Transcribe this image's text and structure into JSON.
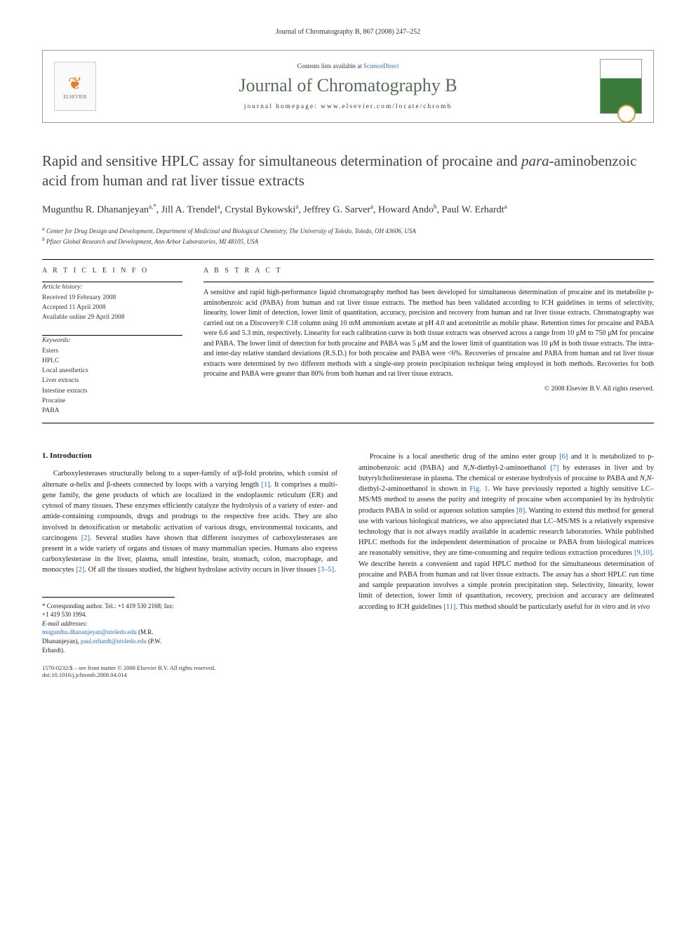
{
  "header": {
    "citation": "Journal of Chromatography B, 867 (2008) 247–252"
  },
  "masthead": {
    "contents_prefix": "Contents lists available at ",
    "contents_link": "ScienceDirect",
    "journal_title": "Journal of Chromatography B",
    "homepage_label": "journal homepage: www.elsevier.com/locate/chromb",
    "publisher": "ELSEVIER"
  },
  "article": {
    "title_pre": "Rapid and sensitive HPLC assay for simultaneous determination of procaine and ",
    "title_ital": "para",
    "title_post": "-aminobenzoic acid from human and rat liver tissue extracts",
    "authors_html": "Mugunthu R. Dhananjeyan<sup>a,*</sup>, Jill A. Trendel<sup>a</sup>, Crystal Bykowski<sup>a</sup>, Jeffrey G. Sarver<sup>a</sup>, Howard Ando<sup>b</sup>, Paul W. Erhardt<sup>a</sup>",
    "affiliations": {
      "a": "Center for Drug Design and Development, Department of Medicinal and Biological Chemistry, The University of Toledo, Toledo, OH 43606, USA",
      "b": "Pfizer Global Research and Development, Ann Arbor Laboratories, MI 48105, USA"
    }
  },
  "info": {
    "heading": "A R T I C L E   I N F O",
    "history_label": "Article history:",
    "received": "Received 19 February 2008",
    "accepted": "Accepted 11 April 2008",
    "online": "Available online 29 April 2008",
    "keywords_label": "Keywords:",
    "keywords": [
      "Esters",
      "HPLC",
      "Local anesthetics",
      "Liver extracts",
      "Intestine extracts",
      "Procaine",
      "PABA"
    ]
  },
  "abstract": {
    "heading": "A B S T R A C T",
    "text": "A sensitive and rapid high-performance liquid chromatography method has been developed for simultaneous determination of procaine and its metabolite p-aminobenzoic acid (PABA) from human and rat liver tissue extracts. The method has been validated according to ICH guidelines in terms of selectivity, linearity, lower limit of detection, lower limit of quantitation, accuracy, precision and recovery from human and rat liver tissue extracts. Chromatography was carried out on a Discovery® C18 column using 10 mM ammonium acetate at pH 4.0 and acetonitrile as mobile phase. Retention times for procaine and PABA were 6.6 and 5.3 min, respectively. Linearity for each calibration curve in both tissue extracts was observed across a range from 10 μM to 750 μM for procaine and PABA. The lower limit of detection for both procaine and PABA was 5 μM and the lower limit of quantitation was 10 μM in both tissue extracts. The intra- and inter-day relative standard deviations (R.S.D.) for both procaine and PABA were <6%. Recoveries of procaine and PABA from human and rat liver tissue extracts were determined by two different methods with a single-step protein precipitation technique being employed in both methods. Recoveries for both procaine and PABA were greater than 80% from both human and rat liver tissue extracts.",
    "copyright": "© 2008 Elsevier B.V. All rights reserved."
  },
  "body": {
    "section1_heading": "1. Introduction",
    "col1_para": "Carboxylesterases structurally belong to a super-family of α/β-fold proteins, which consist of alternate α-helix and β-sheets connected by loops with a varying length [1]. It comprises a multi-gene family, the gene products of which are localized in the endoplasmic reticulum (ER) and cytosol of many tissues. These enzymes efficiently catalyze the hydrolysis of a variety of ester- and amide-containing compounds, drugs and prodrugs to the respective free acids. They are also involved in detoxification or metabolic activation of various drugs, environmental toxicants, and carcinogens [2]. Several studies have shown that different isozymes of carboxylesterases are present in a wide variety of organs and tissues of many mammalian species. Humans also express carboxylesterase in the liver, plasma, small intestine, brain, stomach, colon, macrophage, and monocytes [2]. Of all the tissues studied, the highest hydrolase activity occurs in liver tissues [3–5].",
    "col2_para": "Procaine is a local anesthetic drug of the amino ester group [6] and it is metabolized to p-aminobenzoic acid (PABA) and N,N-diethyl-2-aminoethanol [7] by esterases in liver and by butyrylcholinesterase in plasma. The chemical or esterase hydrolysis of procaine to PABA and N,N-diethyl-2-aminoethanol is shown in Fig. 1. We have previously reported a highly sensitive LC–MS/MS method to assess the purity and integrity of procaine when accompanied by its hydrolytic products PABA in solid or aqueous solution samples [8]. Wanting to extend this method for general use with various biological matrices, we also appreciated that LC–MS/MS is a relatively expensive technology that is not always readily available in academic research laboratories. While published HPLC methods for the independent determination of procaine or PABA from biological matrices are reasonably sensitive, they are time-consuming and require tedious extraction procedures [9,10]. We describe herein a convenient and rapid HPLC method for the simultaneous determination of procaine and PABA from human and rat liver tissue extracts. The assay has a short HPLC run time and sample preparation involves a simple protein precipitation step. Selectivity, linearity, lower limit of detection, lower limit of quantitation, recovery, precision and accuracy are delineated according to ICH guidelines [11]. This method should be particularly useful for in vitro and in vivo"
  },
  "footnotes": {
    "corr": "* Corresponding author. Tel.: +1 419 530 2168; fax: +1 419 530 1994.",
    "email_label": "E-mail addresses:",
    "email1": "mugunthu.dhananjeyan@utoledo.edu",
    "email1_who": "(M.R. Dhananjeyan),",
    "email2": "paul.erhardt@utoledo.edu",
    "email2_who": "(P.W. Erhardt)."
  },
  "footer": {
    "left1": "1570-0232/$ – see front matter © 2008 Elsevier B.V. All rights reserved.",
    "left2": "doi:10.1016/j.jchromb.2008.04.014"
  },
  "colors": {
    "link": "#2a6ebb",
    "journal_title": "#5a6b5a",
    "text": "#222222",
    "rule": "#000000"
  },
  "typography": {
    "body_pt": 10.5,
    "abstract_pt": 10,
    "title_pt": 21,
    "journal_title_pt": 26,
    "meta_pt": 9.5
  }
}
